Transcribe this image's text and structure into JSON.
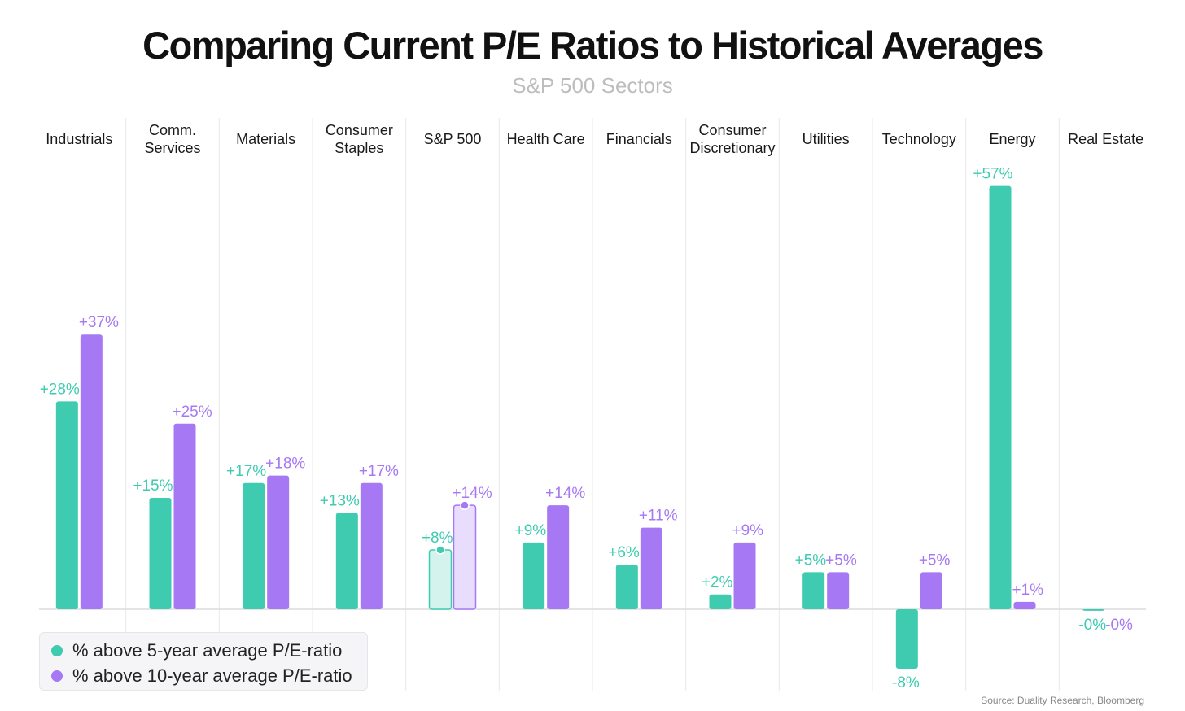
{
  "title": "Comparing Current P/E Ratios to Historical Averages",
  "subtitle": "S&P 500 Sectors",
  "source": "Source: Duality Research, Bloomberg",
  "colors": {
    "teal": "#3ecbb0",
    "purple": "#a678f4",
    "teal_light": "#d3f3ec",
    "purple_light": "#e9ddfd"
  },
  "legend": [
    {
      "label": "% above 5-year average P/E-ratio",
      "color": "#3ecbb0"
    },
    {
      "label": "% above 10-year average P/E-ratio",
      "color": "#a678f4"
    }
  ],
  "chart_data": {
    "type": "bar",
    "title": "Comparing Current P/E Ratios to Historical Averages",
    "subtitle": "S&P 500 Sectors",
    "categories": [
      [
        "Industrials"
      ],
      [
        "Comm.",
        "Services"
      ],
      [
        "Materials"
      ],
      [
        "Consumer",
        "Staples"
      ],
      [
        "S&P 500"
      ],
      [
        "Health Care"
      ],
      [
        "Financials"
      ],
      [
        "Consumer",
        "Discretionary"
      ],
      [
        "Utilities"
      ],
      [
        "Technology"
      ],
      [
        "Energy"
      ],
      [
        "Real Estate"
      ]
    ],
    "series": [
      {
        "name": "% above 5-year average P/E-ratio",
        "values": [
          28,
          15,
          17,
          13,
          8,
          9,
          6,
          2,
          5,
          -8,
          57,
          -0.2
        ],
        "labels": [
          "+28%",
          "+15%",
          "+17%",
          "+13%",
          "+8%",
          "+9%",
          "+6%",
          "+2%",
          "+5%",
          "-8%",
          "+57%",
          "-0%"
        ]
      },
      {
        "name": "% above 10-year average P/E-ratio",
        "values": [
          37,
          25,
          18,
          17,
          14,
          14,
          11,
          9,
          5,
          5,
          1,
          0
        ],
        "labels": [
          "+37%",
          "+25%",
          "+18%",
          "+17%",
          "+14%",
          "+14%",
          "+11%",
          "+9%",
          "+5%",
          "+5%",
          "+1%",
          "-0%"
        ]
      }
    ],
    "highlight_category": "S&P 500",
    "ylim": [
      -8,
      57
    ],
    "grid": "vertical separators",
    "legend_position": "bottom-left"
  }
}
